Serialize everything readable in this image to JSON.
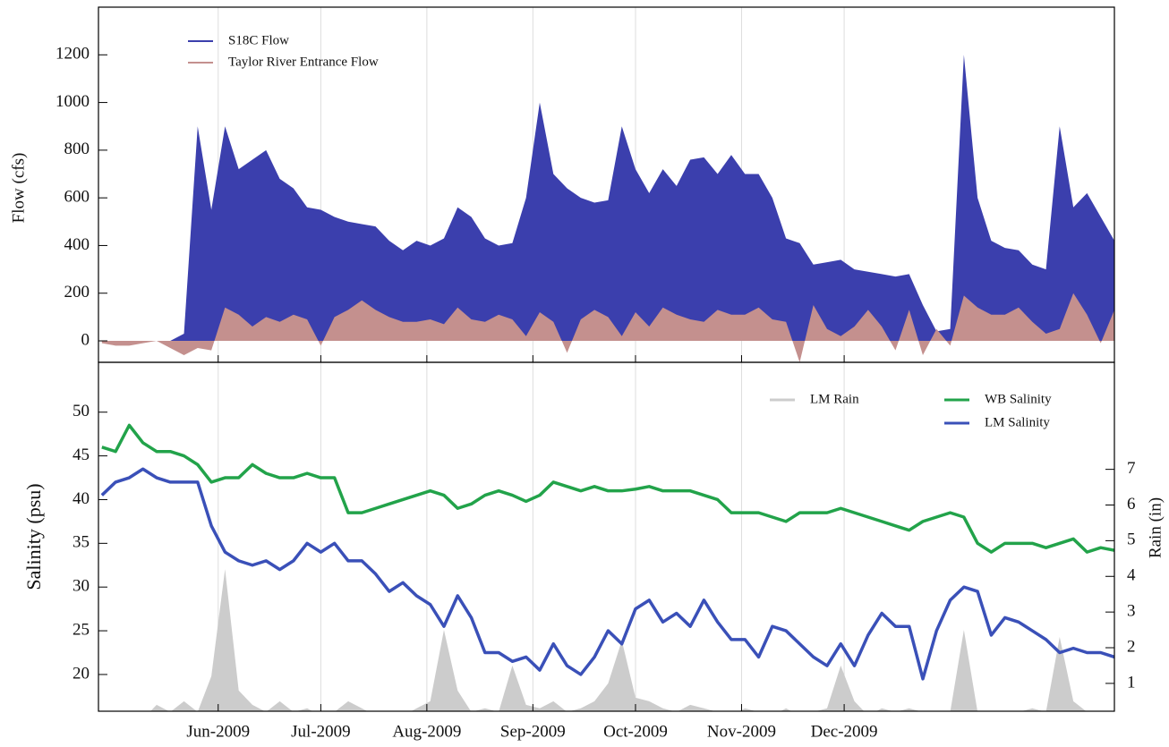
{
  "chart_data": [
    {
      "type": "area",
      "ylabel": "Flow (cfs)",
      "x": [
        118,
        122,
        126,
        130,
        134,
        138,
        142,
        146,
        150,
        154,
        158,
        162,
        166,
        170,
        174,
        178,
        182,
        186,
        190,
        194,
        198,
        202,
        206,
        210,
        214,
        218,
        222,
        226,
        230,
        234,
        238,
        242,
        246,
        250,
        254,
        258,
        262,
        266,
        270,
        274,
        278,
        282,
        286,
        290,
        294,
        298,
        302,
        306,
        310,
        314,
        318,
        322,
        326,
        330,
        334,
        338,
        342,
        346,
        350,
        354,
        358,
        362,
        366,
        370,
        374,
        378,
        382,
        386,
        390,
        394,
        398,
        402,
        406,
        410,
        414
      ],
      "xlim": [
        117,
        414
      ],
      "ylim": [
        -90,
        1400
      ],
      "yticks": [
        0,
        200,
        400,
        600,
        800,
        1000,
        1200
      ],
      "series": [
        {
          "name": "S18C Flow",
          "color": "#3b3fad",
          "values": [
            0,
            0,
            0,
            0,
            0,
            0,
            30,
            900,
            550,
            900,
            720,
            760,
            800,
            680,
            640,
            560,
            550,
            520,
            500,
            490,
            480,
            420,
            380,
            420,
            400,
            430,
            560,
            520,
            430,
            400,
            410,
            600,
            1000,
            700,
            640,
            600,
            580,
            590,
            900,
            720,
            620,
            720,
            650,
            760,
            770,
            700,
            780,
            700,
            700,
            600,
            430,
            410,
            320,
            330,
            340,
            300,
            290,
            280,
            270,
            280,
            150,
            40,
            50,
            1200,
            600,
            420,
            390,
            380,
            320,
            300,
            900,
            560,
            620,
            520,
            420
          ]
        },
        {
          "name": "Taylor River Entrance Flow",
          "color": "#c4908e",
          "values": [
            -10,
            -20,
            -20,
            -10,
            0,
            -30,
            -60,
            -30,
            -40,
            140,
            110,
            60,
            100,
            80,
            110,
            90,
            -20,
            100,
            130,
            170,
            130,
            100,
            80,
            80,
            90,
            70,
            140,
            90,
            80,
            110,
            90,
            20,
            120,
            80,
            -50,
            90,
            130,
            100,
            20,
            120,
            60,
            140,
            110,
            90,
            80,
            130,
            110,
            110,
            140,
            90,
            80,
            -90,
            150,
            50,
            20,
            60,
            130,
            60,
            -40,
            130,
            -60,
            50,
            -20,
            190,
            140,
            110,
            110,
            140,
            80,
            30,
            50,
            200,
            110,
            -10,
            130
          ]
        }
      ]
    },
    {
      "type": "line",
      "ylabel": "Salinity (psu)",
      "y2label": "Rain (in)",
      "x": [
        118,
        122,
        126,
        130,
        134,
        138,
        142,
        146,
        150,
        154,
        158,
        162,
        166,
        170,
        174,
        178,
        182,
        186,
        190,
        194,
        198,
        202,
        206,
        210,
        214,
        218,
        222,
        226,
        230,
        234,
        238,
        242,
        246,
        250,
        254,
        258,
        262,
        266,
        270,
        274,
        278,
        282,
        286,
        290,
        294,
        298,
        302,
        306,
        310,
        314,
        318,
        322,
        326,
        330,
        334,
        338,
        342,
        346,
        350,
        354,
        358,
        362,
        366,
        370,
        374,
        378,
        382,
        386,
        390,
        394,
        398,
        402,
        406,
        410,
        414
      ],
      "xlim": [
        117,
        414
      ],
      "xticks": [
        {
          "value": 152,
          "label": "Jun-2009"
        },
        {
          "value": 182,
          "label": "Jul-2009"
        },
        {
          "value": 213,
          "label": "Aug-2009"
        },
        {
          "value": 244,
          "label": "Sep-2009"
        },
        {
          "value": 274,
          "label": "Oct-2009"
        },
        {
          "value": 305,
          "label": "Nov-2009"
        },
        {
          "value": 335,
          "label": "Dec-2009"
        }
      ],
      "ylim": [
        15.8,
        55.7
      ],
      "yticks": [
        20,
        25,
        30,
        35,
        40,
        45,
        50
      ],
      "y2lim": [
        0.22,
        10
      ],
      "y2ticks": [
        1,
        2,
        3,
        4,
        5,
        6,
        7
      ],
      "series": [
        {
          "name": "LM Rain",
          "color": "#cccccc",
          "axis": "y2",
          "type": "area",
          "values": [
            0,
            0,
            0,
            0,
            0.4,
            0.2,
            0.5,
            0.2,
            1.2,
            4.2,
            0.8,
            0.4,
            0.2,
            0.5,
            0.2,
            0.3,
            0.1,
            0.2,
            0.5,
            0.3,
            0.1,
            0.2,
            0.1,
            0.3,
            0.5,
            2.5,
            0.8,
            0.2,
            0.3,
            0.2,
            1.5,
            0.4,
            0.3,
            0.5,
            0.2,
            0.3,
            0.5,
            1,
            2.2,
            0.6,
            0.5,
            0.3,
            0.2,
            0.4,
            0.3,
            0.2,
            0.1,
            0.3,
            0.2,
            0.1,
            0.3,
            0.1,
            0.2,
            0.3,
            1.5,
            0.5,
            0.1,
            0.3,
            0.2,
            0.3,
            0.2,
            0.1,
            0.2,
            2.5,
            0.2,
            0.1,
            0.1,
            0.2,
            0.3,
            0.2,
            2.3,
            0.5,
            0.2,
            0.1,
            0.1
          ]
        },
        {
          "name": "WB Salinity",
          "color": "#22a34a",
          "values": [
            46,
            45.5,
            48.5,
            46.5,
            45.5,
            45.5,
            45,
            44,
            42,
            42.5,
            42.5,
            44,
            43,
            42.5,
            42.5,
            43,
            42.5,
            42.5,
            38.5,
            38.5,
            39,
            39.5,
            40,
            40.5,
            41,
            40.5,
            39,
            39.5,
            40.5,
            41,
            40.5,
            39.8,
            40.5,
            42,
            41.5,
            41,
            41.5,
            41,
            41,
            41.2,
            41.5,
            41,
            41,
            41,
            40.5,
            40,
            38.5,
            38.5,
            38.5,
            38,
            37.5,
            38.5,
            38.5,
            38.5,
            39,
            38.5,
            38,
            37.5,
            37,
            36.5,
            37.5,
            38,
            38.5,
            38,
            35,
            34,
            35,
            35,
            35,
            34.5,
            35,
            35.5,
            34,
            34.5,
            34.2
          ]
        },
        {
          "name": "LM Salinity",
          "color": "#3a50b8",
          "values": [
            40.5,
            42,
            42.5,
            43.5,
            42.5,
            42,
            42,
            42,
            37,
            34,
            33,
            32.5,
            33,
            32,
            33,
            35,
            34,
            35,
            33,
            33,
            31.5,
            29.5,
            30.5,
            29,
            28,
            25.5,
            29,
            26.5,
            22.5,
            22.5,
            21.5,
            22,
            20.5,
            23.5,
            21,
            20,
            22,
            25,
            23.5,
            27.5,
            28.5,
            26,
            27,
            25.5,
            28.5,
            26,
            24,
            24,
            22,
            25.5,
            25,
            23.5,
            22,
            21,
            23.5,
            21,
            24.5,
            27,
            25.5,
            25.5,
            19.5,
            25,
            28.5,
            30,
            29.5,
            24.5,
            26.5,
            26,
            25,
            24,
            22.5,
            23,
            22.5,
            22.5,
            22
          ]
        }
      ]
    }
  ]
}
